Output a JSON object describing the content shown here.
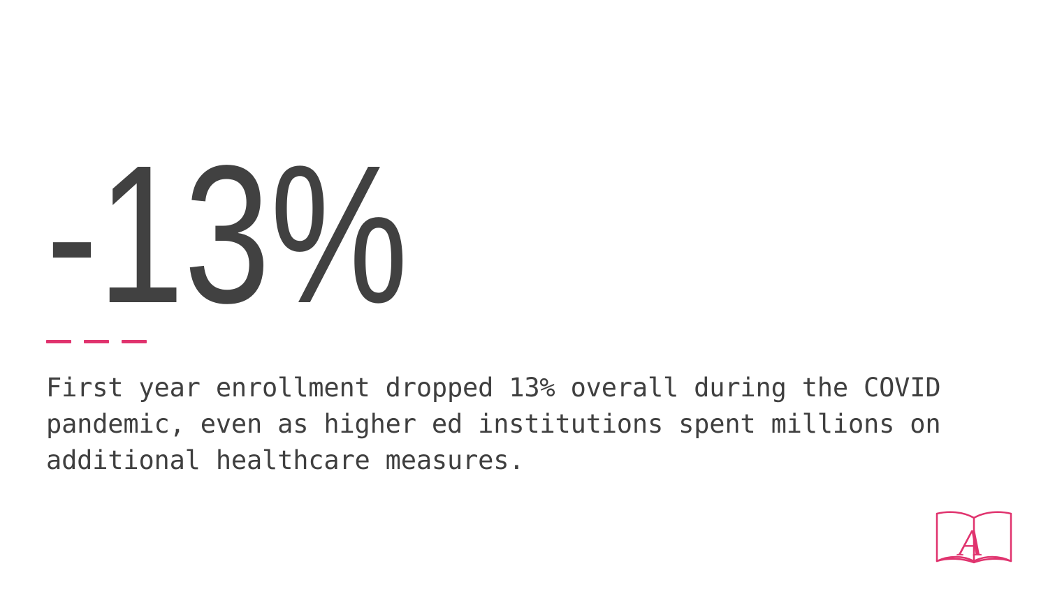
{
  "stat": {
    "value": "-13%"
  },
  "body": {
    "text": "First year enrollment dropped 13% overall during the COVID pandemic, even as higher ed institutions spent millions on additional healthcare measures."
  },
  "logo": {
    "letter": "A",
    "icon": "open-book-icon"
  },
  "colors": {
    "accent": "#E0336E",
    "stat": "#414141",
    "text": "#3f3f3f",
    "background": "#ffffff"
  }
}
